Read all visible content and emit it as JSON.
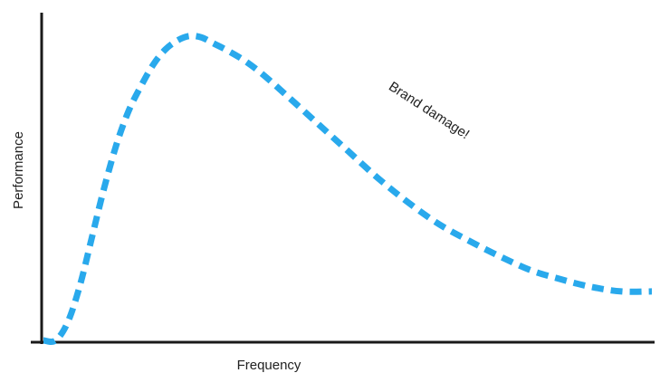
{
  "chart_data": {
    "type": "line",
    "title": "",
    "xlabel": "Frequency",
    "ylabel": "Performance",
    "xlim": [
      0,
      100
    ],
    "ylim": [
      0,
      100
    ],
    "grid": false,
    "legend": "none",
    "x_ticks": [],
    "y_ticks": [],
    "series": [
      {
        "color": "#29a9ec",
        "style": "dashed",
        "points": [
          [
            0,
            0
          ],
          [
            2,
            0
          ],
          [
            4,
            6
          ],
          [
            6,
            18
          ],
          [
            8,
            34
          ],
          [
            10,
            50
          ],
          [
            12,
            64
          ],
          [
            14,
            75
          ],
          [
            16,
            83
          ],
          [
            18,
            90
          ],
          [
            20,
            95
          ],
          [
            22,
            98
          ],
          [
            24,
            99.5
          ],
          [
            26,
            99
          ],
          [
            28,
            97
          ],
          [
            30,
            95
          ],
          [
            33,
            91.5
          ],
          [
            36,
            87
          ],
          [
            40,
            80
          ],
          [
            45,
            71
          ],
          [
            50,
            62
          ],
          [
            55,
            53
          ],
          [
            60,
            45
          ],
          [
            65,
            38
          ],
          [
            70,
            32.5
          ],
          [
            75,
            27.5
          ],
          [
            80,
            23
          ],
          [
            85,
            20
          ],
          [
            90,
            17.5
          ],
          [
            95,
            16
          ],
          [
            100,
            16
          ]
        ]
      }
    ],
    "annotations": [
      {
        "text": "Brand damage!",
        "x": 63,
        "y": 74
      }
    ]
  }
}
